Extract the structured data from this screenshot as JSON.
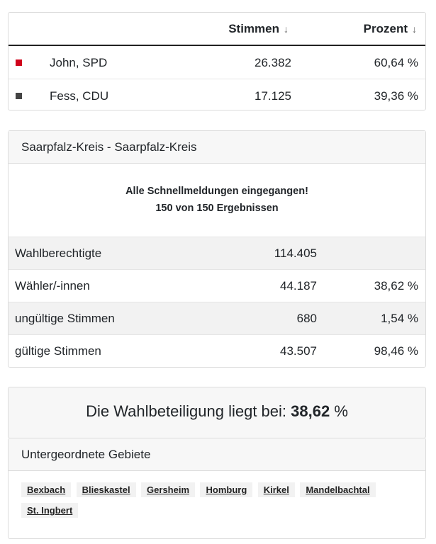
{
  "results": {
    "headers": {
      "votes": "Stimmen",
      "percent": "Prozent",
      "sort_arrow": "↓"
    },
    "rows": [
      {
        "name": "John, SPD",
        "votes": "26.382",
        "percent": "60,64 %",
        "color": "#d0021b"
      },
      {
        "name": "Fess, CDU",
        "votes": "17.125",
        "percent": "39,36 %",
        "color": "#444444"
      }
    ]
  },
  "district": {
    "title": "Saarpfalz-Kreis - Saarpfalz-Kreis",
    "notice_line1": "Alle Schnellmeldungen eingegangen!",
    "notice_line2": "150 von 150 Ergebnissen",
    "stats": [
      {
        "label": "Wahlberechtigte",
        "value": "114.405",
        "percent": ""
      },
      {
        "label": "Wähler/-innen",
        "value": "44.187",
        "percent": "38,62 %"
      },
      {
        "label": "ungültige Stimmen",
        "value": "680",
        "percent": "1,54 %"
      },
      {
        "label": "gültige Stimmen",
        "value": "43.507",
        "percent": "98,46 %"
      }
    ]
  },
  "turnout": {
    "prefix": "Die Wahlbeteiligung liegt bei:",
    "value": "38,62",
    "unit": "%"
  },
  "subareas": {
    "title": "Untergeordnete Gebiete",
    "items": [
      "Bexbach",
      "Blieskastel",
      "Gersheim",
      "Homburg",
      "Kirkel",
      "Mandelbachtal",
      "St. Ingbert"
    ]
  }
}
